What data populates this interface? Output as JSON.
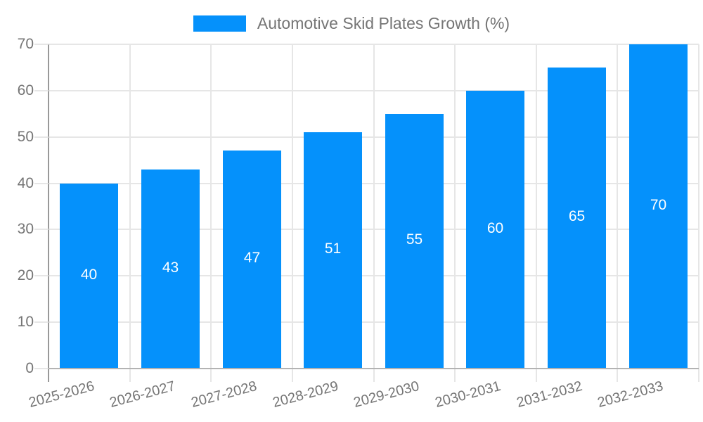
{
  "chart_data": {
    "type": "bar",
    "title": "Automotive Skid Plates Growth (%)",
    "legend": {
      "position": "top",
      "label": "Automotive Skid Plates Growth (%)"
    },
    "categories": [
      "2025-2026",
      "2026-2027",
      "2027-2028",
      "2028-2029",
      "2029-2030",
      "2030-2031",
      "2031-2032",
      "2032-2033"
    ],
    "values": [
      40,
      43,
      47,
      51,
      55,
      60,
      65,
      70
    ],
    "bar_value_labels": [
      "40",
      "43",
      "47",
      "51",
      "55",
      "60",
      "65",
      "70"
    ],
    "xlabel": "",
    "ylabel": "",
    "ylim": [
      0,
      70
    ],
    "yticks": [
      0,
      10,
      20,
      30,
      40,
      50,
      60,
      70
    ],
    "grid": true,
    "colors": {
      "bar": "#0591FB",
      "bar_label": "#FFFFFF",
      "axis_text": "#757575",
      "gridline": "#E6E6E6",
      "y_axis_line": "#999999",
      "x_axis_line": "#B3B3B3"
    }
  }
}
